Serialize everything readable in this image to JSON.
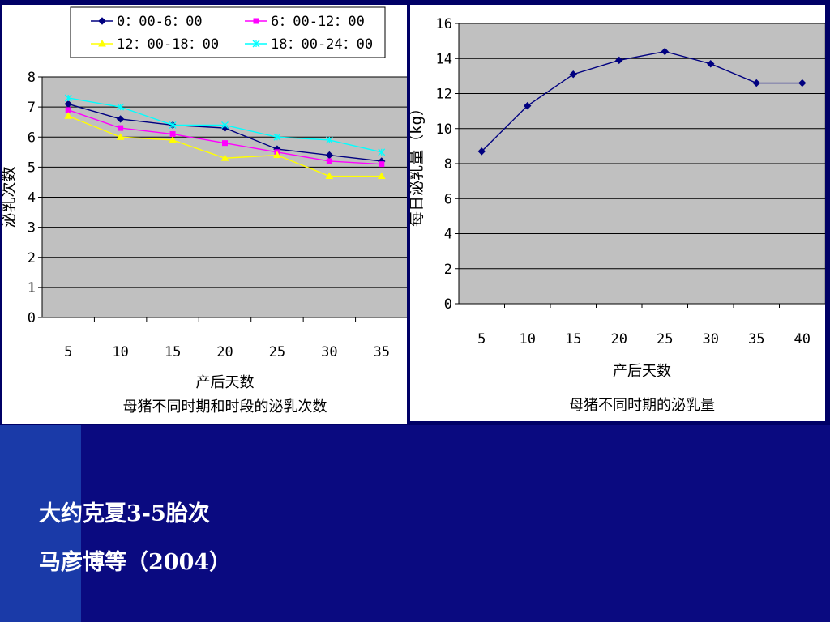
{
  "chart_data": [
    {
      "type": "line",
      "title": "母猪不同时期和时段的泌乳次数",
      "xlabel": "产后天数",
      "ylabel": "泌乳次数",
      "categories": [
        "5",
        "10",
        "15",
        "20",
        "25",
        "30",
        "35"
      ],
      "ylim": [
        0,
        8
      ],
      "yticks": [
        0,
        1,
        2,
        3,
        4,
        5,
        6,
        7,
        8
      ],
      "grid": true,
      "legend_position": "top",
      "series": [
        {
          "name": "0：00-6：00",
          "color": "#000080",
          "marker": "diamond",
          "values": [
            7.1,
            6.6,
            6.4,
            6.3,
            5.6,
            5.4,
            5.2
          ]
        },
        {
          "name": "6：00-12：00",
          "color": "#ff00ff",
          "marker": "square",
          "values": [
            6.9,
            6.3,
            6.1,
            5.8,
            5.5,
            5.2,
            5.1
          ]
        },
        {
          "name": "12：00-18：00",
          "color": "#ffff00",
          "marker": "triangle",
          "values": [
            6.7,
            6.0,
            5.9,
            5.3,
            5.4,
            4.7,
            4.7
          ]
        },
        {
          "name": "18：00-24：00",
          "color": "#00ffff",
          "marker": "star",
          "values": [
            7.3,
            7.0,
            6.4,
            6.4,
            6.0,
            5.9,
            5.5
          ]
        }
      ]
    },
    {
      "type": "line",
      "title": "母猪不同时期的泌乳量",
      "xlabel": "产后天数",
      "ylabel": "每日泌乳量（kg）",
      "categories": [
        "5",
        "10",
        "15",
        "20",
        "25",
        "30",
        "35",
        "40"
      ],
      "ylim": [
        0,
        16
      ],
      "yticks": [
        0,
        2,
        4,
        6,
        8,
        10,
        12,
        14,
        16
      ],
      "grid": true,
      "series": [
        {
          "color": "#000080",
          "marker": "diamond",
          "values": [
            8.7,
            11.3,
            13.1,
            13.9,
            14.4,
            13.7,
            12.6,
            12.6
          ]
        }
      ]
    }
  ],
  "captions": {
    "line1": "大约克夏3-5胎次",
    "line2": "马彦博等（2004）"
  }
}
